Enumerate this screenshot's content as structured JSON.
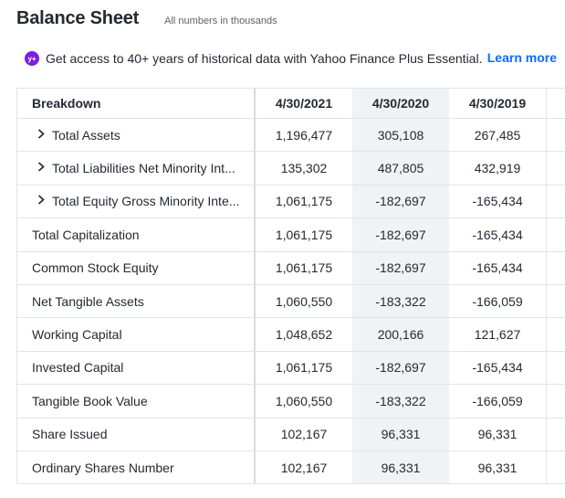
{
  "header": {
    "title": "Balance Sheet",
    "subtitle": "All numbers in thousands"
  },
  "promo": {
    "icon": "yahoo-plus-icon",
    "icon_text": "y+",
    "text": "Get access to 40+ years of historical data with Yahoo Finance Plus Essential.",
    "link": "Learn more"
  },
  "table": {
    "columns": [
      "Breakdown",
      "4/30/2021",
      "4/30/2020",
      "4/30/2019"
    ],
    "rows": [
      {
        "label": "Total Assets",
        "expandable": true,
        "values": [
          "1,196,477",
          "305,108",
          "267,485"
        ]
      },
      {
        "label": "Total Liabilities Net Minority Int...",
        "expandable": true,
        "values": [
          "135,302",
          "487,805",
          "432,919"
        ]
      },
      {
        "label": "Total Equity Gross Minority Inte...",
        "expandable": true,
        "values": [
          "1,061,175",
          "-182,697",
          "-165,434"
        ]
      },
      {
        "label": "Total Capitalization",
        "expandable": false,
        "values": [
          "1,061,175",
          "-182,697",
          "-165,434"
        ]
      },
      {
        "label": "Common Stock Equity",
        "expandable": false,
        "values": [
          "1,061,175",
          "-182,697",
          "-165,434"
        ]
      },
      {
        "label": "Net Tangible Assets",
        "expandable": false,
        "values": [
          "1,060,550",
          "-183,322",
          "-166,059"
        ]
      },
      {
        "label": "Working Capital",
        "expandable": false,
        "values": [
          "1,048,652",
          "200,166",
          "121,627"
        ]
      },
      {
        "label": "Invested Capital",
        "expandable": false,
        "values": [
          "1,061,175",
          "-182,697",
          "-165,434"
        ]
      },
      {
        "label": "Tangible Book Value",
        "expandable": false,
        "values": [
          "1,060,550",
          "-183,322",
          "-166,059"
        ]
      },
      {
        "label": "Share Issued",
        "expandable": false,
        "values": [
          "102,167",
          "96,331",
          "96,331"
        ]
      },
      {
        "label": "Ordinary Shares Number",
        "expandable": false,
        "values": [
          "102,167",
          "96,331",
          "96,331"
        ]
      }
    ]
  },
  "colors": {
    "accent": "#0f69ff",
    "plus_badge": "#7b1fe0",
    "highlight_column": "#f0f3f5"
  }
}
